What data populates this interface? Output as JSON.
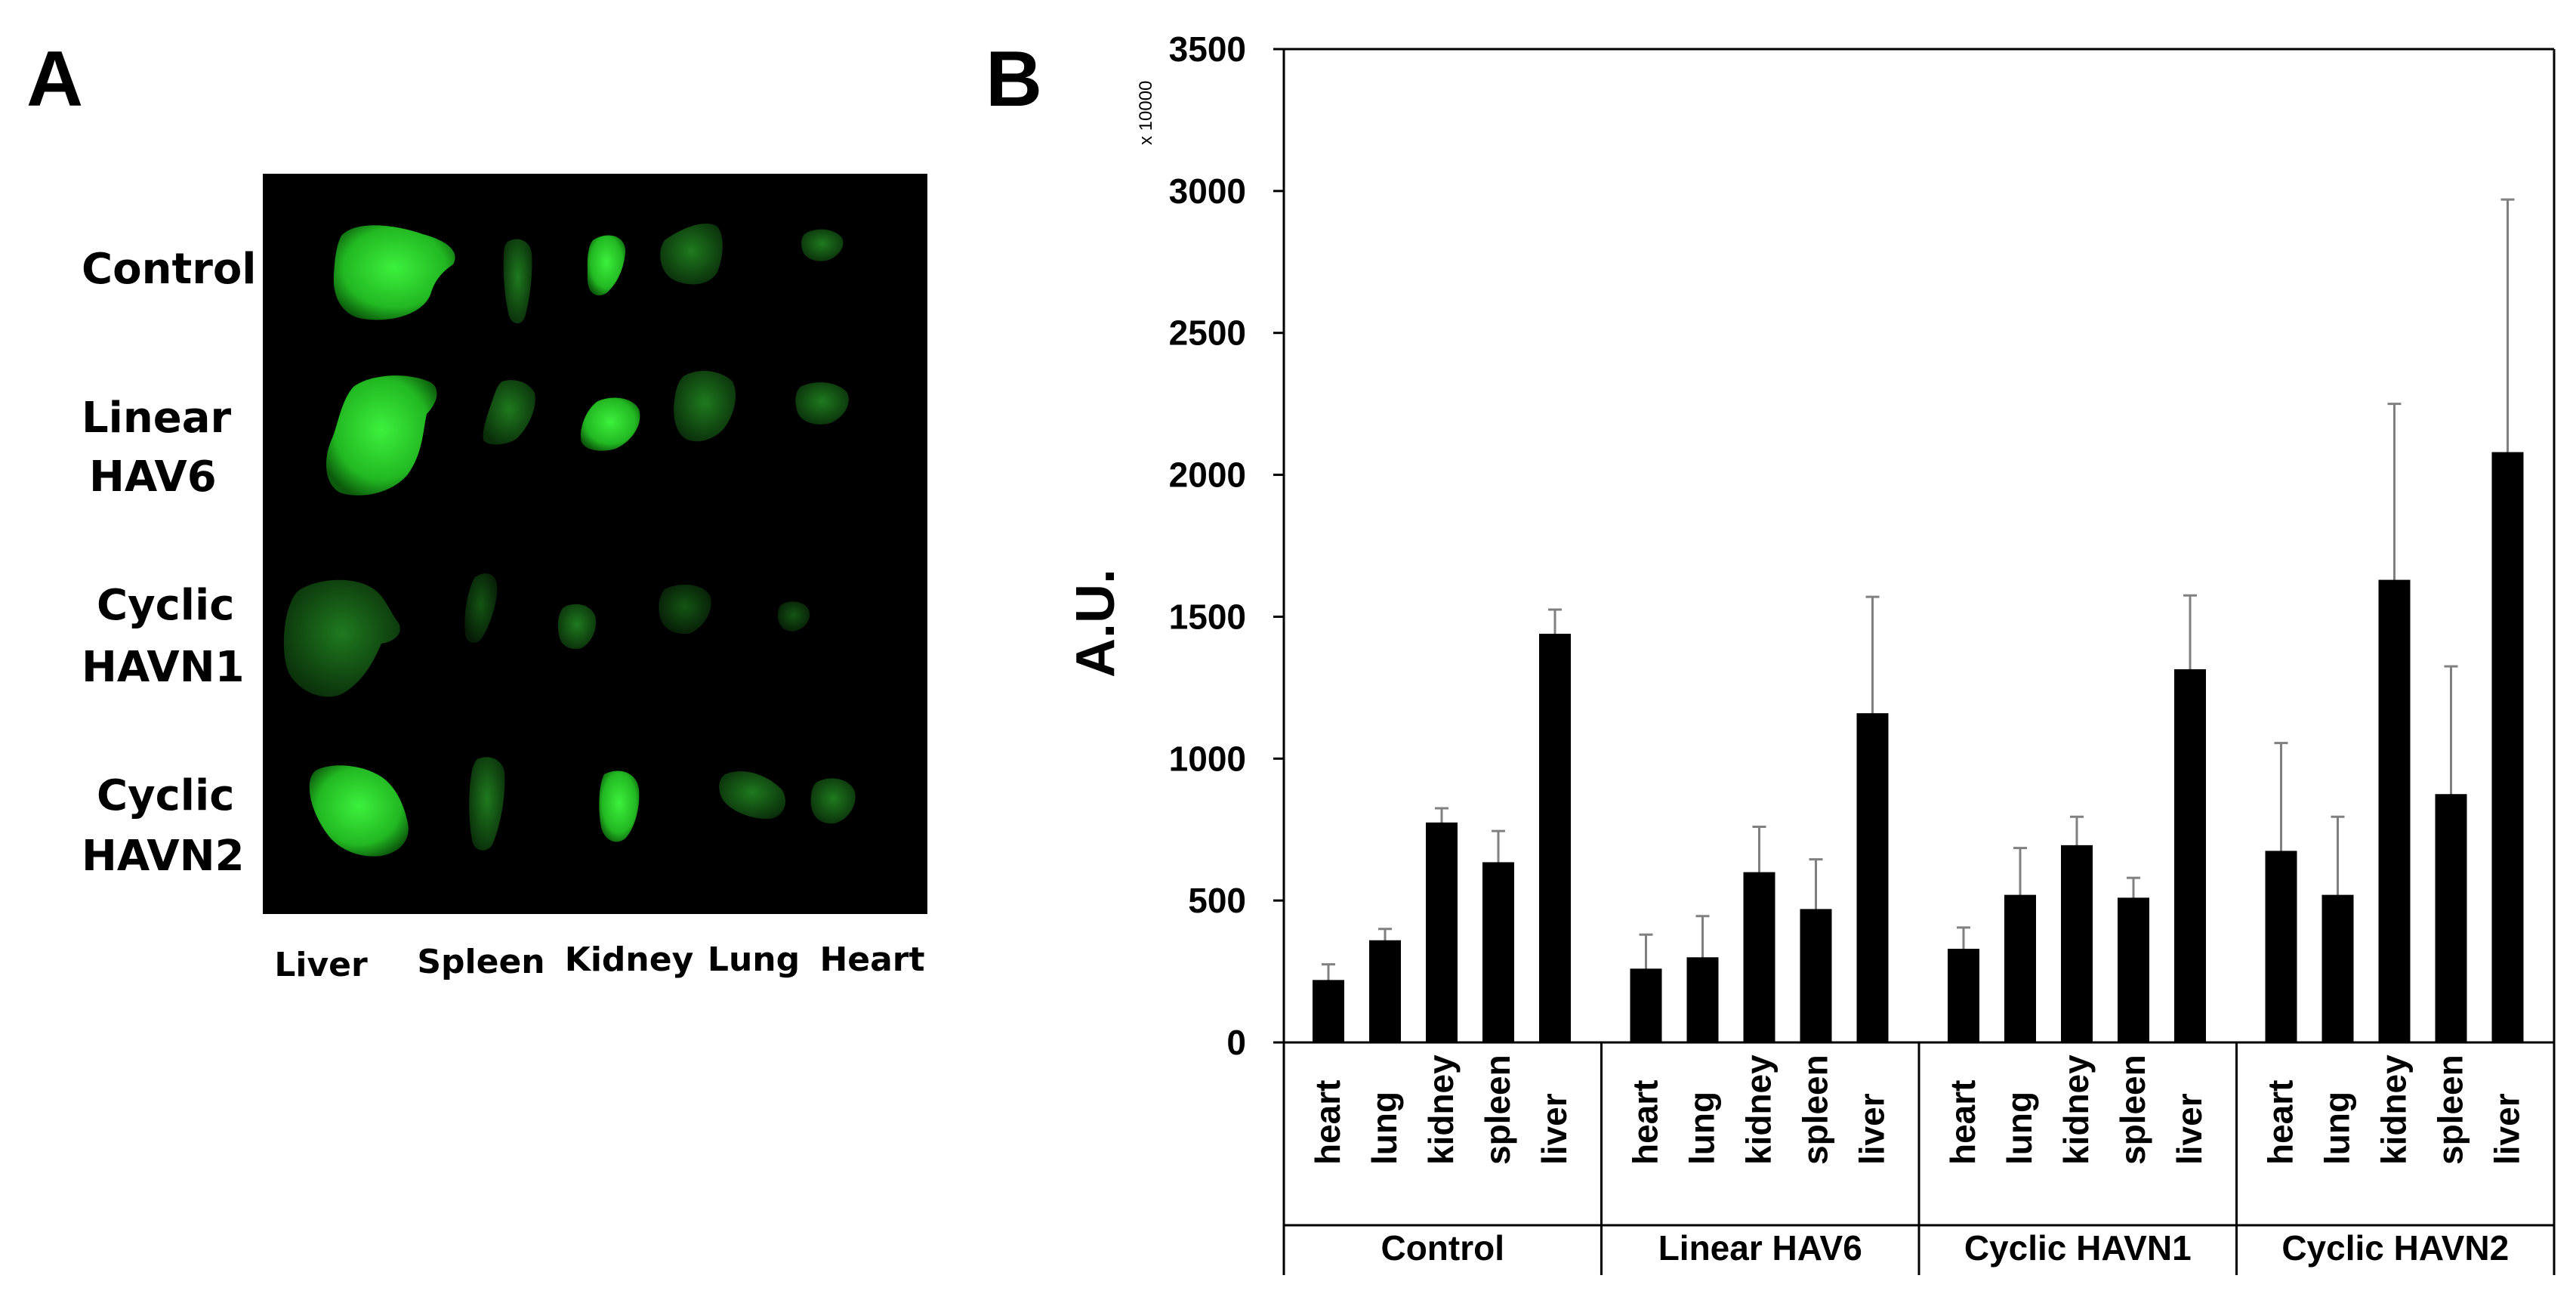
{
  "panel_a": {
    "letter": "A",
    "row_labels": [
      [
        "Control"
      ],
      [
        "Linear",
        "HAV6"
      ],
      [
        "Cyclic",
        "HAVN1"
      ],
      [
        "Cyclic",
        "HAVN2"
      ]
    ],
    "column_labels": [
      "Liver",
      "Spleen",
      "Kidney",
      "Lung",
      "Heart"
    ],
    "fluorescence_color": "#2fd02f",
    "background_color": "#000000"
  },
  "panel_b": {
    "letter": "B",
    "scale_note": "x 10000"
  },
  "chart_data": {
    "type": "bar",
    "ylabel": "A.U.",
    "ylim": [
      0,
      3500
    ],
    "yticks": [
      0,
      500,
      1000,
      1500,
      2000,
      2500,
      3000,
      3500
    ],
    "grid": false,
    "bar_color": "#000000",
    "error_color": "#808080",
    "groups": [
      {
        "name": "Control",
        "categories": [
          "heart",
          "lung",
          "kidney",
          "spleen",
          "liver"
        ],
        "values": [
          220,
          360,
          775,
          635,
          1440
        ],
        "errors": [
          55,
          40,
          50,
          110,
          85
        ]
      },
      {
        "name": "Linear HAV6",
        "categories": [
          "heart",
          "lung",
          "kidney",
          "spleen",
          "liver"
        ],
        "values": [
          260,
          300,
          600,
          470,
          1160
        ],
        "errors": [
          120,
          145,
          160,
          175,
          410
        ]
      },
      {
        "name": "Cyclic HAVN1",
        "categories": [
          "heart",
          "lung",
          "kidney",
          "spleen",
          "liver"
        ],
        "values": [
          330,
          520,
          695,
          510,
          1315
        ],
        "errors": [
          75,
          165,
          100,
          70,
          260
        ]
      },
      {
        "name": "Cyclic HAVN2",
        "categories": [
          "heart",
          "lung",
          "kidney",
          "spleen",
          "liver"
        ],
        "values": [
          675,
          520,
          1630,
          875,
          2080
        ],
        "errors": [
          380,
          275,
          620,
          450,
          890
        ]
      }
    ]
  }
}
